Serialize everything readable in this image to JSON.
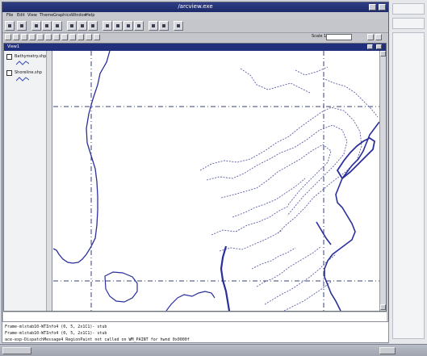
{
  "window": {
    "title": "/arcview.exe"
  },
  "menu": [
    "File",
    "Edit",
    "View",
    "Theme",
    "Graphics",
    "Window",
    "Help"
  ],
  "toolbar": {
    "scale_label": "Scale 1:",
    "scale_value": ""
  },
  "document": {
    "title": "View1"
  },
  "layers": [
    {
      "label": "Bathymetry.shp",
      "color": "#3b4bb0"
    },
    {
      "label": "Shoreline.shp",
      "color": "#3b4bb0"
    }
  ],
  "console": {
    "lines": [
      "Frame-mlstab10-WTInfo4 (0, 5, 2x1C1)- stub",
      "Frame-mlstab10-WTInfo4 (0, 5, 2x1C1)- stub",
      "ace-exp-DispatchMessage4 RegionPaint not called on WM_PAINT for hwnd 0x0000f"
    ]
  },
  "colors": {
    "title_bar": "#1d2a6a",
    "map_line": "#2a2f9a",
    "grid": "#3a3f70"
  }
}
